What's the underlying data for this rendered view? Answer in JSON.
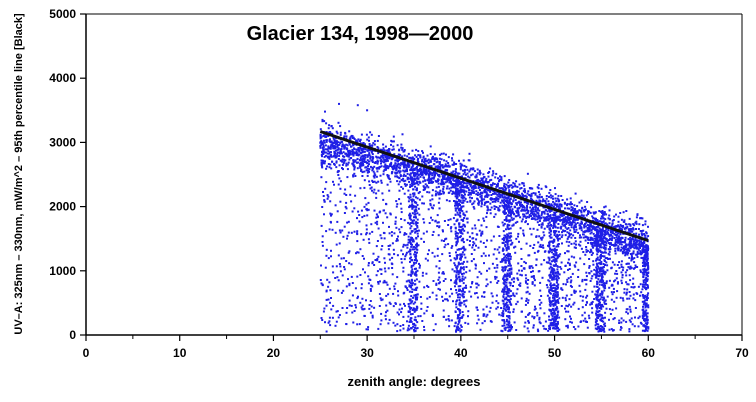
{
  "chart_data": {
    "type": "scatter",
    "title": "Glacier  134,  1998—2000",
    "xlabel": "zenith  angle:  degrees",
    "ylabel": "UV–A:  325nm  –  330nm,  mW/m^2  –  95th  percentile  line  [Black]",
    "xlim": [
      0,
      70
    ],
    "ylim": [
      0,
      5000
    ],
    "x_ticks": [
      "0",
      "10",
      "20",
      "30",
      "40",
      "50",
      "60",
      "70"
    ],
    "y_ticks": [
      "0",
      "1000",
      "2000",
      "3000",
      "4000",
      "5000"
    ],
    "grid": false,
    "colors": {
      "points": "#1f1fe6",
      "percentile_line": "#111111",
      "axes": "#000000"
    },
    "series": [
      {
        "kind": "scatter",
        "x_range": [
          25,
          60
        ],
        "y_range": [
          50,
          3600
        ],
        "upper_band": [
          {
            "x": 25,
            "y": 3000
          },
          {
            "x": 30,
            "y": 2800
          },
          {
            "x": 35,
            "y": 2600
          },
          {
            "x": 40,
            "y": 2400
          },
          {
            "x": 45,
            "y": 2150
          },
          {
            "x": 50,
            "y": 1900
          },
          {
            "x": 55,
            "y": 1650
          },
          {
            "x": 60,
            "y": 1400
          }
        ],
        "dense_columns_x": [
          35,
          40,
          45,
          50,
          55,
          60
        ],
        "sample_points": [
          {
            "x": 25.5,
            "y": 3480
          },
          {
            "x": 27,
            "y": 3600
          },
          {
            "x": 29,
            "y": 3580
          },
          {
            "x": 30,
            "y": 3500
          },
          {
            "x": 25.5,
            "y": 200
          },
          {
            "x": 35,
            "y": 80
          },
          {
            "x": 40,
            "y": 150
          },
          {
            "x": 45,
            "y": 120
          },
          {
            "x": 50,
            "y": 100
          },
          {
            "x": 55,
            "y": 60
          },
          {
            "x": 60,
            "y": 100
          }
        ]
      },
      {
        "kind": "line",
        "x": [
          25,
          60
        ],
        "y": [
          3170,
          1470
        ]
      }
    ]
  }
}
